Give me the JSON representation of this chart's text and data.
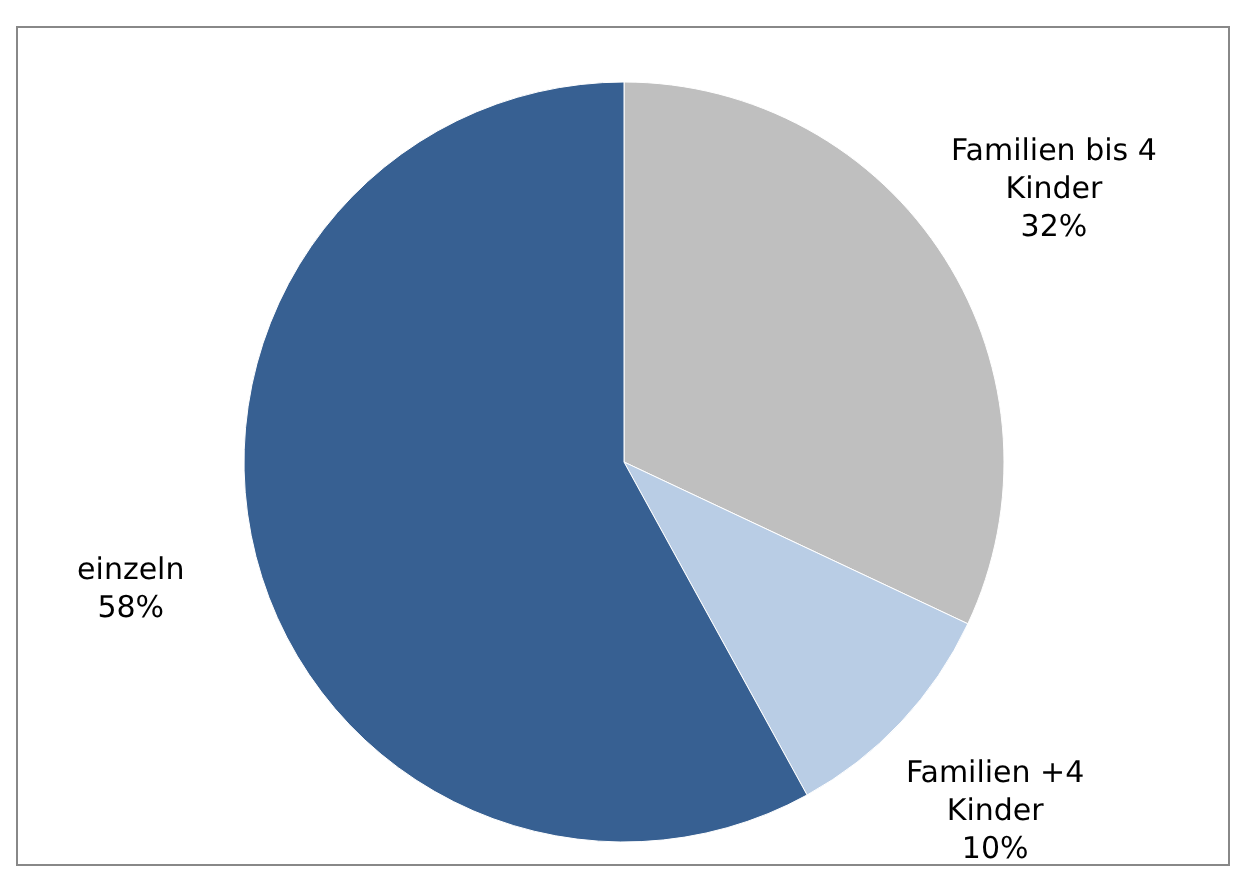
{
  "chart_data": {
    "type": "pie",
    "categories": [
      "Familien bis 4 Kinder",
      "Familien +4 Kinder",
      "einzeln"
    ],
    "values": [
      32,
      10,
      58
    ],
    "value_labels": [
      "32%",
      "10%",
      "58%"
    ],
    "colors": [
      "#bfbfbf",
      "#b9cde5",
      "#376092"
    ]
  }
}
